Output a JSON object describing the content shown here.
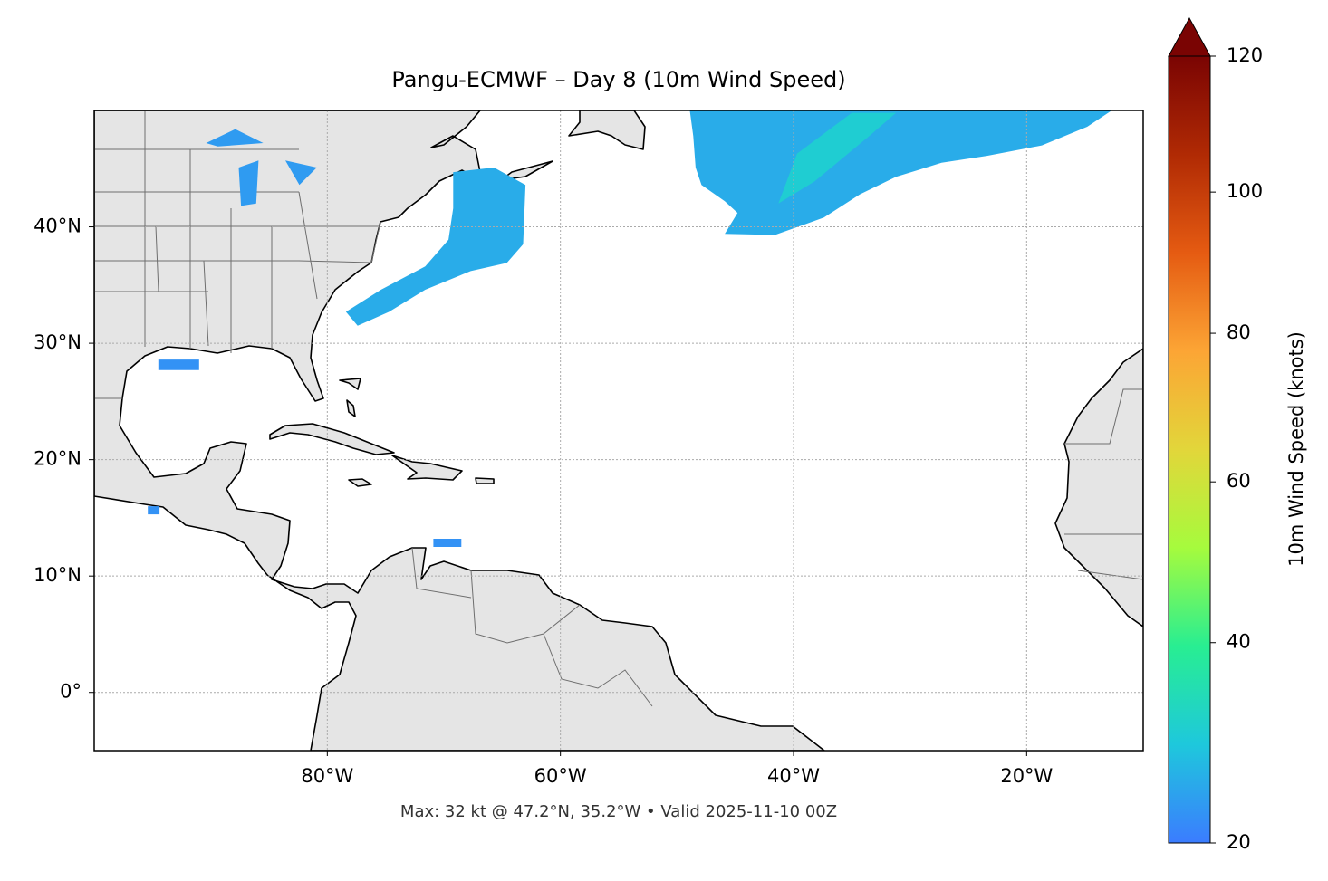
{
  "map": {
    "title": "Pangu-ECMWF – Day 8 (10m Wind Speed)",
    "footer": "Max: 32 kt @ 47.2°N, 35.2°W • Valid 2025-11-10 00Z",
    "projection": "plate-carree",
    "xlim": [
      -100,
      -10
    ],
    "ylim": [
      -5,
      50
    ],
    "xticks": [
      {
        "value": -80,
        "label": "80°W"
      },
      {
        "value": -60,
        "label": "60°W"
      },
      {
        "value": -40,
        "label": "40°W"
      },
      {
        "value": -20,
        "label": "20°W"
      }
    ],
    "yticks": [
      {
        "value": 0,
        "label": "0°"
      },
      {
        "value": 10,
        "label": "10°N"
      },
      {
        "value": 20,
        "label": "20°N"
      },
      {
        "value": 30,
        "label": "30°N"
      },
      {
        "value": 40,
        "label": "40°N"
      }
    ],
    "grid": true,
    "colorbar": {
      "label": "10m Wind Speed (knots)",
      "range": [
        20,
        120
      ],
      "ticks": [
        20,
        40,
        60,
        80,
        100,
        120
      ],
      "gamma": 0.85,
      "extend": "max",
      "colors": [
        "#3b7cff",
        "#1ec8dc",
        "#28ee92",
        "#a6fb3d",
        "#e2d63a",
        "#fca535",
        "#e55b12",
        "#b02a04",
        "#7a0403"
      ]
    },
    "wind_areas": [
      {
        "speed": 25,
        "polygon": [
          [
            -48.9,
            50
          ],
          [
            -12.7,
            50
          ],
          [
            -14.8,
            48.6
          ],
          [
            -18.7,
            47.0
          ],
          [
            -23.4,
            46.1
          ],
          [
            -27.3,
            45.5
          ],
          [
            -31.2,
            44.3
          ],
          [
            -34.3,
            42.8
          ],
          [
            -37.4,
            40.8
          ],
          [
            -41.6,
            39.3
          ],
          [
            -45.9,
            39.4
          ],
          [
            -44.8,
            41.2
          ],
          [
            -45.9,
            42.2
          ],
          [
            -47.9,
            43.6
          ],
          [
            -48.4,
            45.1
          ],
          [
            -48.6,
            47.8
          ]
        ]
      },
      {
        "speed": 30,
        "polygon": [
          [
            -39.7,
            46.3
          ],
          [
            -35.0,
            49.8
          ],
          [
            -31.2,
            49.8
          ],
          [
            -33.5,
            47.8
          ],
          [
            -38.2,
            43.9
          ],
          [
            -41.3,
            42.0
          ]
        ]
      },
      {
        "speed": 25,
        "polygon": [
          [
            -69.2,
            44.7
          ],
          [
            -65.7,
            45.1
          ],
          [
            -63.0,
            43.6
          ],
          [
            -63.2,
            38.5
          ],
          [
            -64.6,
            36.9
          ],
          [
            -67.7,
            36.2
          ],
          [
            -71.6,
            34.6
          ],
          [
            -74.7,
            32.7
          ],
          [
            -77.4,
            31.5
          ],
          [
            -78.4,
            32.7
          ],
          [
            -75.4,
            34.6
          ],
          [
            -71.6,
            36.6
          ],
          [
            -69.6,
            38.9
          ],
          [
            -69.2,
            41.6
          ]
        ]
      },
      {
        "speed": 23,
        "polygon": [
          [
            -90.4,
            47.2
          ],
          [
            -87.9,
            48.4
          ],
          [
            -85.5,
            47.2
          ],
          [
            -89.4,
            46.9
          ]
        ]
      },
      {
        "speed": 23,
        "polygon": [
          [
            -87.6,
            45.1
          ],
          [
            -85.9,
            45.7
          ],
          [
            -86.1,
            42.0
          ],
          [
            -87.4,
            41.8
          ]
        ]
      },
      {
        "speed": 23,
        "polygon": [
          [
            -83.6,
            45.7
          ],
          [
            -80.9,
            45.1
          ],
          [
            -82.4,
            43.6
          ]
        ]
      },
      {
        "speed": 22,
        "polygon": [
          [
            -94.5,
            28.6
          ],
          [
            -91.0,
            28.6
          ],
          [
            -91.0,
            27.7
          ],
          [
            -94.5,
            27.7
          ]
        ]
      },
      {
        "speed": 22,
        "polygon": [
          [
            -70.9,
            13.2
          ],
          [
            -68.5,
            13.2
          ],
          [
            -68.5,
            12.5
          ],
          [
            -70.9,
            12.5
          ]
        ]
      },
      {
        "speed": 22,
        "polygon": [
          [
            -95.4,
            16.0
          ],
          [
            -94.4,
            16.0
          ],
          [
            -94.4,
            15.3
          ],
          [
            -95.4,
            15.3
          ]
        ]
      }
    ]
  }
}
